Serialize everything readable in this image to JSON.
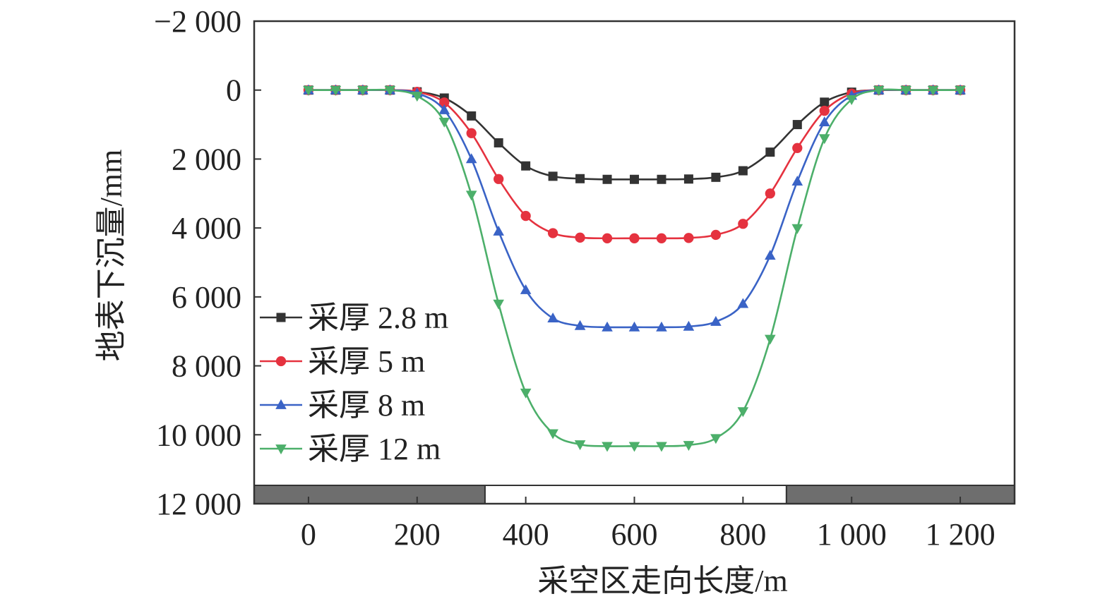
{
  "chart_data": {
    "type": "line",
    "title": "",
    "xlabel": "采空区走向长度/m",
    "ylabel": "地表下沉量/mm",
    "xlim": [
      -100,
      1300
    ],
    "ylim": [
      12000,
      -2000
    ],
    "y_inverted": true,
    "grid": false,
    "legend_position": "lower-left",
    "x_ticks": [
      0,
      200,
      400,
      600,
      800,
      1000,
      1200
    ],
    "x_tick_labels": [
      "0",
      "200",
      "400",
      "600",
      "800",
      "1 000",
      "1 200"
    ],
    "y_ticks": [
      -2000,
      0,
      2000,
      4000,
      6000,
      8000,
      10000,
      12000
    ],
    "y_tick_labels": [
      "−2 000",
      "0",
      "2 000",
      "4 000",
      "6 000",
      "8 000",
      "10 000",
      "12 000"
    ],
    "x": [
      0,
      50,
      100,
      150,
      200,
      250,
      300,
      350,
      400,
      450,
      500,
      550,
      600,
      650,
      700,
      750,
      800,
      850,
      900,
      950,
      1000,
      1050,
      1100,
      1150,
      1200
    ],
    "series": [
      {
        "name": "采厚 2.8 m",
        "color": "#333333",
        "marker": "square",
        "values": [
          0,
          0,
          0,
          0,
          50,
          230,
          750,
          1530,
          2200,
          2500,
          2570,
          2590,
          2590,
          2590,
          2580,
          2530,
          2340,
          1800,
          1000,
          350,
          60,
          0,
          0,
          0,
          0
        ]
      },
      {
        "name": "采厚 5 m",
        "color": "#e5323f",
        "marker": "circle",
        "values": [
          0,
          0,
          0,
          0,
          50,
          360,
          1250,
          2580,
          3650,
          4150,
          4280,
          4300,
          4300,
          4300,
          4290,
          4200,
          3880,
          3000,
          1680,
          600,
          100,
          0,
          0,
          0,
          0
        ]
      },
      {
        "name": "采厚 8 m",
        "color": "#3a63c6",
        "marker": "triangle-up",
        "values": [
          0,
          0,
          0,
          0,
          90,
          580,
          2000,
          4100,
          5800,
          6620,
          6840,
          6880,
          6880,
          6880,
          6860,
          6720,
          6200,
          4800,
          2650,
          930,
          160,
          0,
          0,
          0,
          0
        ]
      },
      {
        "name": "采厚 12 m",
        "color": "#4caf6a",
        "marker": "triangle-down",
        "values": [
          0,
          0,
          0,
          0,
          170,
          920,
          3040,
          6200,
          8780,
          9960,
          10280,
          10330,
          10330,
          10330,
          10300,
          10100,
          9320,
          7220,
          4010,
          1400,
          270,
          0,
          0,
          0,
          0
        ]
      }
    ],
    "goaf_bar": {
      "coal_color": "#6e6e6e",
      "goaf_color": "#ffffff",
      "goaf_x_range": [
        325,
        880
      ]
    }
  }
}
